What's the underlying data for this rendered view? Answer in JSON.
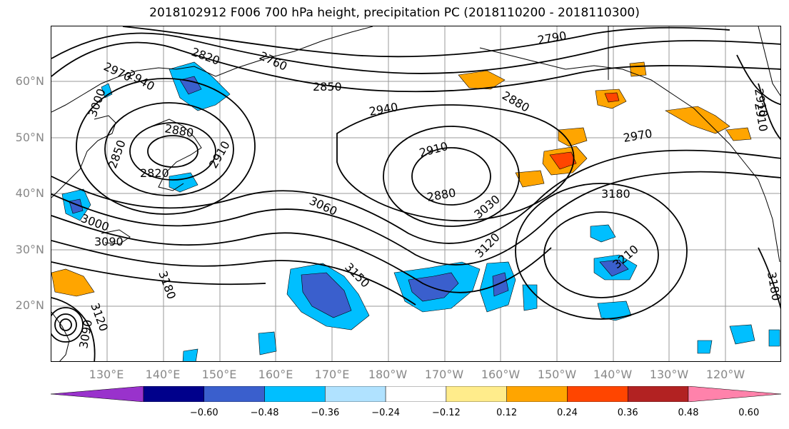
{
  "title": "2018102912 F006 700 hPa height, precipitation PC (2018110200 - 2018110300)",
  "lat_labels": [
    "60°N",
    "50°N",
    "40°N",
    "30°N",
    "20°N"
  ],
  "lon_labels": [
    "130°E",
    "140°E",
    "150°E",
    "160°E",
    "170°E",
    "180°W",
    "170°W",
    "160°W",
    "150°W",
    "140°W",
    "130°W",
    "120°W"
  ],
  "contour_labels": [
    "2820",
    "2760",
    "2790",
    "2850",
    "2940",
    "2970",
    "3000",
    "2880",
    "2850",
    "2820",
    "2910",
    "2940",
    "2910",
    "2880",
    "2970",
    "3060",
    "3030",
    "3000",
    "3090",
    "3120",
    "3150",
    "3180",
    "3180",
    "3210",
    "3090",
    "3120",
    "3180",
    "2910",
    "2910",
    "2880"
  ],
  "colorbar": {
    "colors": [
      "#9932cc",
      "#00008b",
      "#3a5fcd",
      "#00bfff",
      "#b0e2ff",
      "#ffffff",
      "#ffec8b",
      "#ffa500",
      "#ff4500",
      "#b22222",
      "#ff82ab"
    ],
    "ticks": [
      "−0.60",
      "−0.48",
      "−0.36",
      "−0.24",
      "−0.12",
      "0.12",
      "0.24",
      "0.36",
      "0.48",
      "0.60"
    ]
  },
  "colors": {
    "negative_light": "#b0e2ff",
    "negative": "#00bfff",
    "negative_strong": "#3a5fcd",
    "positive": "#ffa500",
    "positive_light": "#ffec8b",
    "positive_strong": "#ff4500"
  }
}
